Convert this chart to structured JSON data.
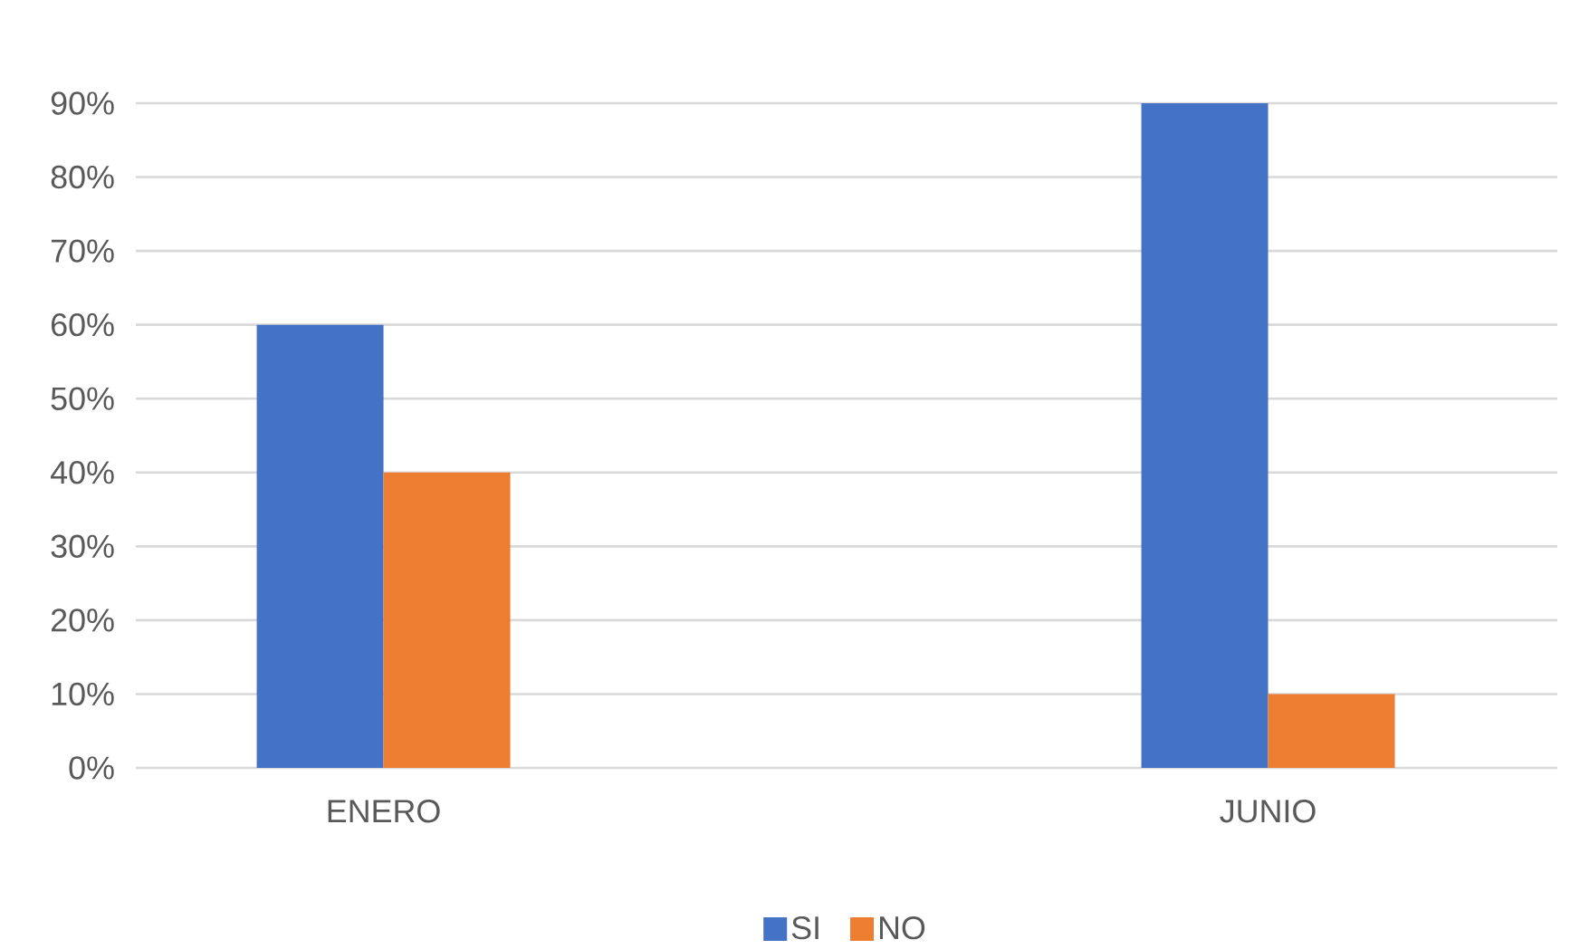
{
  "chart_data": {
    "type": "bar",
    "categories": [
      "ENERO",
      "JUNIO"
    ],
    "series": [
      {
        "name": "SI",
        "color": "#4472c4",
        "values": [
          60,
          90
        ]
      },
      {
        "name": "NO",
        "color": "#ed7d31",
        "values": [
          40,
          10
        ]
      }
    ],
    "ylim": [
      0,
      90
    ],
    "yticks": [
      {
        "value": 0,
        "label": "0%"
      },
      {
        "value": 10,
        "label": "10%"
      },
      {
        "value": 20,
        "label": "20%"
      },
      {
        "value": 30,
        "label": "30%"
      },
      {
        "value": 40,
        "label": "40%"
      },
      {
        "value": 50,
        "label": "50%"
      },
      {
        "value": 60,
        "label": "60%"
      },
      {
        "value": 70,
        "label": "70%"
      },
      {
        "value": 80,
        "label": "80%"
      },
      {
        "value": 90,
        "label": "90%"
      }
    ],
    "grid": "y",
    "legend": "bottom"
  }
}
